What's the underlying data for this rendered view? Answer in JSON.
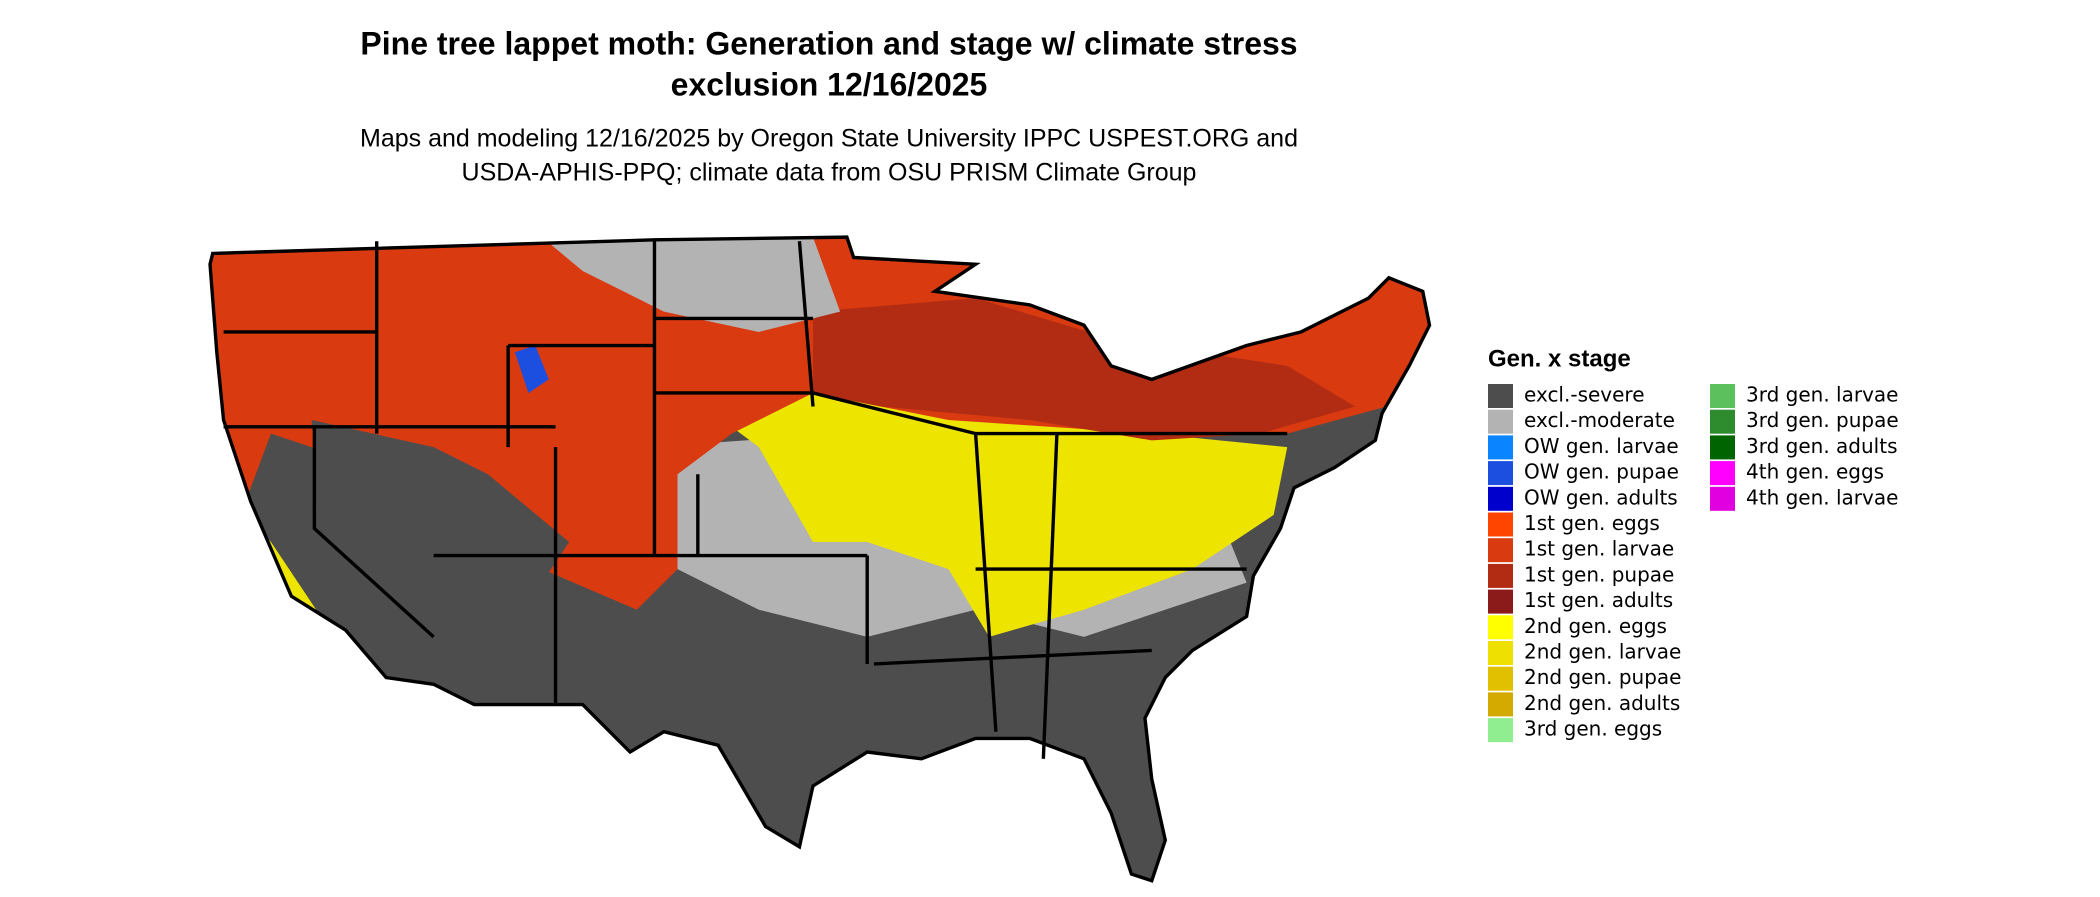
{
  "title": [
    "Pine tree lappet moth: Generation and stage w/ climate stress",
    "exclusion 12/16/2025"
  ],
  "subtitle": [
    "Maps and modeling 12/16/2025 by Oregon State University IPPC USPEST.ORG and",
    "USDA-APHIS-PPQ; climate data from OSU PRISM Climate Group"
  ],
  "legend": {
    "title": "Gen. x stage",
    "items": [
      {
        "label": "excl.-severe",
        "color": "#4d4d4d"
      },
      {
        "label": "excl.-moderate",
        "color": "#b3b3b3"
      },
      {
        "label": "OW gen. larvae",
        "color": "#0a84ff"
      },
      {
        "label": "OW gen. pupae",
        "color": "#1c4fe0"
      },
      {
        "label": "OW gen. adults",
        "color": "#0000cd"
      },
      {
        "label": "1st gen. eggs",
        "color": "#ff4500"
      },
      {
        "label": "1st gen. larvae",
        "color": "#d93a10"
      },
      {
        "label": "1st gen. pupae",
        "color": "#b22c14"
      },
      {
        "label": "1st gen. adults",
        "color": "#8b1a1a"
      },
      {
        "label": "2nd gen. eggs",
        "color": "#ffff00"
      },
      {
        "label": "2nd gen. larvae",
        "color": "#eee000"
      },
      {
        "label": "2nd gen. pupae",
        "color": "#e0c000"
      },
      {
        "label": "2nd gen. adults",
        "color": "#d4aa00"
      },
      {
        "label": "3rd gen. eggs",
        "color": "#90ee90"
      },
      {
        "label": "3rd gen. larvae",
        "color": "#5cc05c"
      },
      {
        "label": "3rd gen. pupae",
        "color": "#2e8b2e"
      },
      {
        "label": "3rd gen. adults",
        "color": "#006400"
      },
      {
        "label": "4th gen. eggs",
        "color": "#ff00ff"
      },
      {
        "label": "4th gen. larvae",
        "color": "#e000e0"
      }
    ]
  }
}
